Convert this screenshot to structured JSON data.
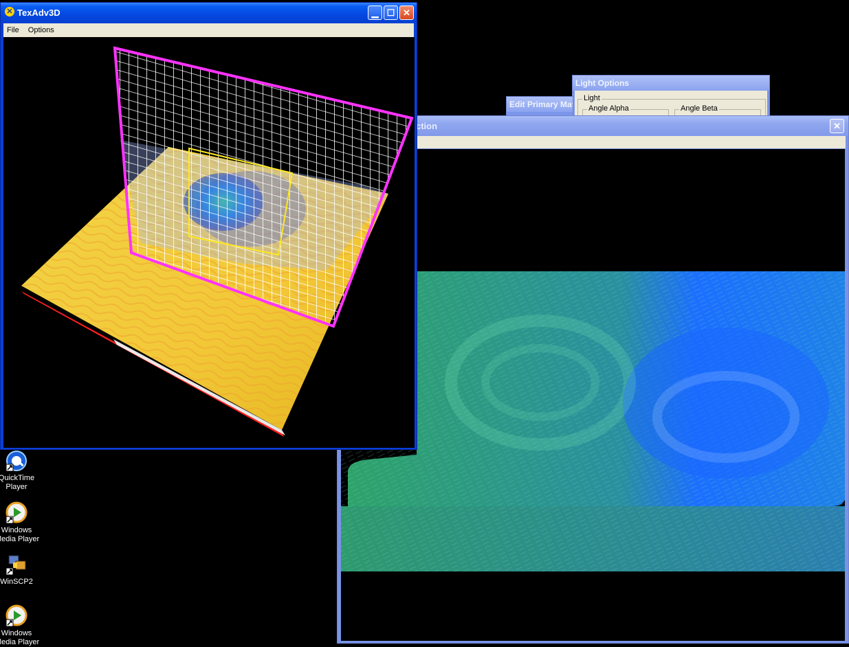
{
  "desktop": {
    "icons": [
      {
        "label1": "QuickTime",
        "label2": "Player"
      },
      {
        "label1": "Windows",
        "label2": "Media Player"
      },
      {
        "label1": "WinSCP2",
        "label2": ""
      },
      {
        "label1": "Windows",
        "label2": "Media Player"
      }
    ]
  },
  "main_window": {
    "title": "TexAdv3D",
    "menu": [
      "File",
      "Options"
    ]
  },
  "back_window": {
    "title_fragment": "ction"
  },
  "edit_dialog": {
    "title": "Edit Primary Mat"
  },
  "light_dialog": {
    "title": "Light Options",
    "group_label": "Light",
    "alpha_label": "Angle Alpha",
    "beta_label": "Angle Beta"
  },
  "colors": {
    "xp_title_active": "#0a5df2",
    "xp_title_inactive": "#8fa6ef",
    "close_button": "#d8481f",
    "frame_magenta": "#ff33ff",
    "slice_yellow": "#ffe81f",
    "field_blue": "#1b6fff",
    "field_green": "#2ea36a"
  }
}
